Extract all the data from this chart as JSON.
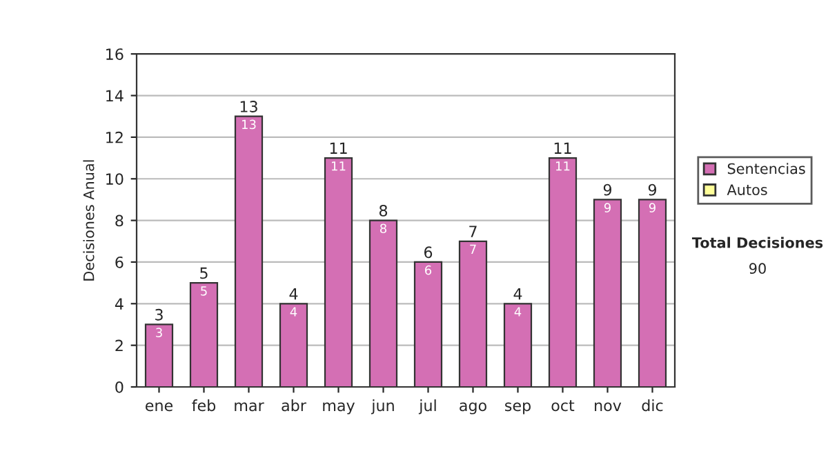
{
  "chart_data": {
    "type": "bar",
    "ylabel": "Decisiones Anual",
    "categories": [
      "ene",
      "feb",
      "mar",
      "abr",
      "may",
      "jun",
      "jul",
      "ago",
      "sep",
      "oct",
      "nov",
      "dic"
    ],
    "series": [
      {
        "name": "Sentencias",
        "color": "#d46fb4",
        "values": [
          3,
          5,
          13,
          4,
          11,
          8,
          6,
          7,
          4,
          11,
          9,
          9
        ],
        "value_labels": [
          "3",
          "5",
          "13",
          "4",
          "11",
          "8",
          "6",
          "7",
          "4",
          "11",
          "9",
          "9"
        ]
      },
      {
        "name": "Autos",
        "color": "#ffff99",
        "values": [
          null,
          null,
          null,
          null,
          null,
          null,
          null,
          null,
          null,
          null,
          null,
          null
        ]
      }
    ],
    "stacked": true,
    "totals": [
      "3",
      "5",
      "13",
      "4",
      "11",
      "8",
      "6",
      "7",
      "4",
      "11",
      "9",
      "9"
    ],
    "ylim": [
      0,
      16
    ],
    "yticks": [
      0,
      2,
      4,
      6,
      8,
      10,
      12,
      14,
      16
    ],
    "grid": "y",
    "legend": "right",
    "annotations": [
      "Total Decisiones",
      "90"
    ]
  }
}
